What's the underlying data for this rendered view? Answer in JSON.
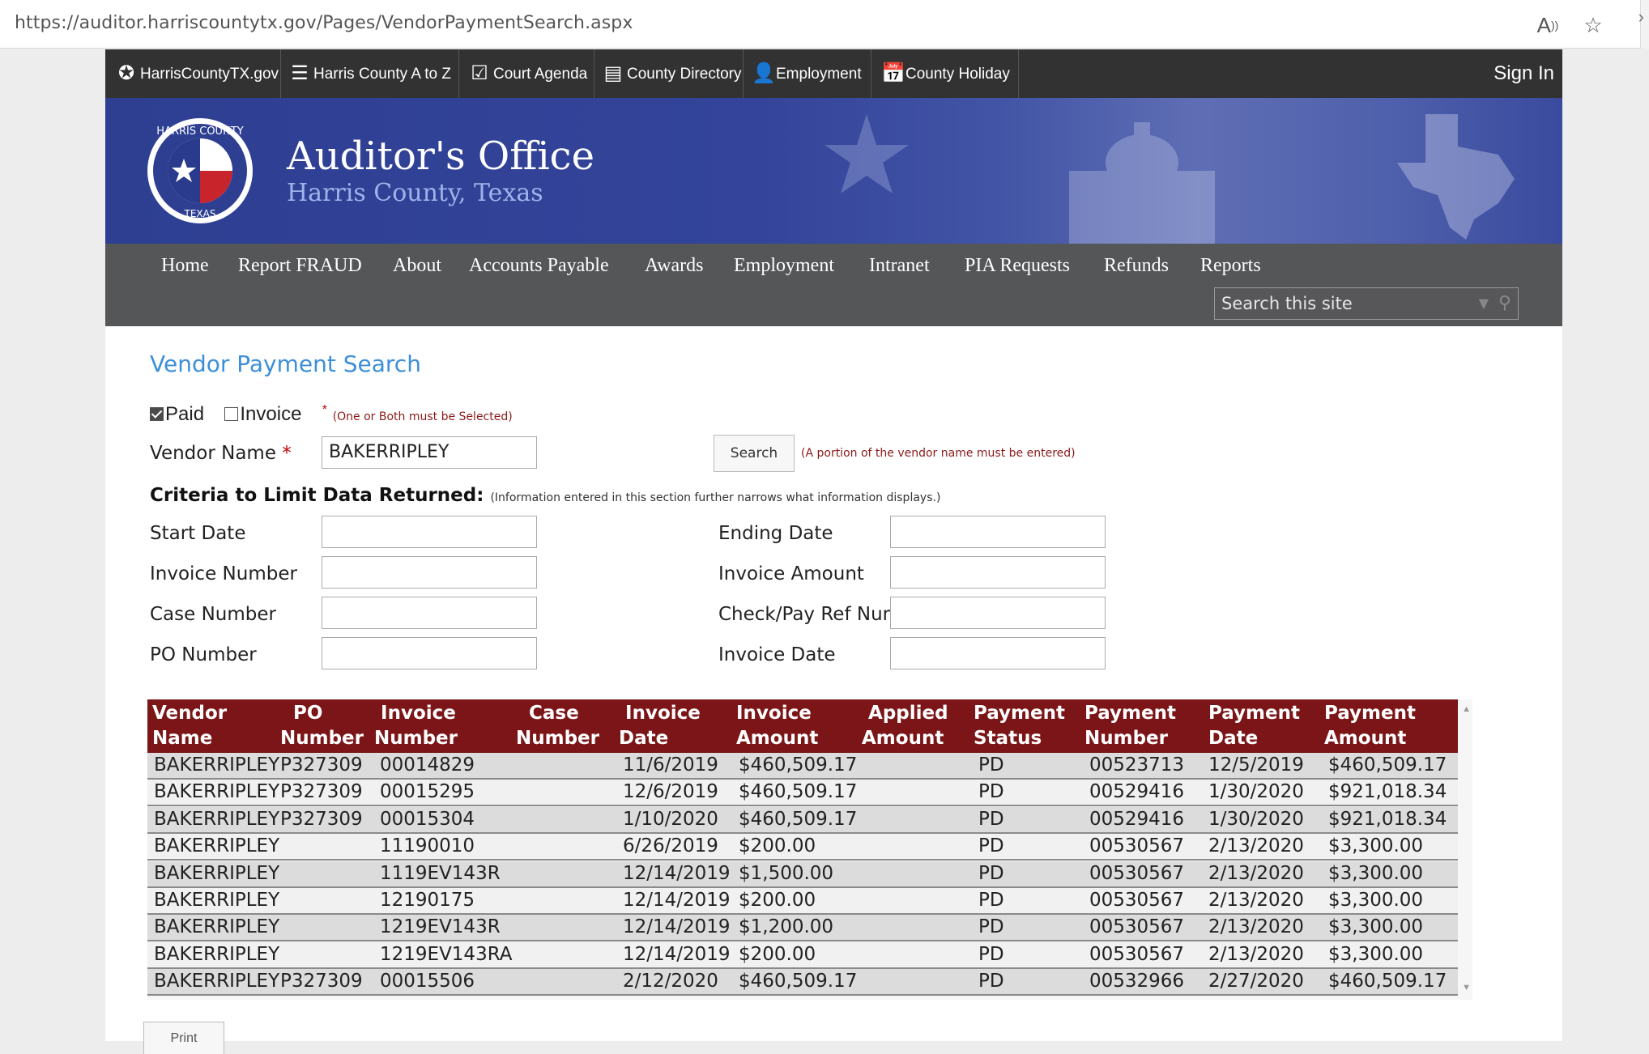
{
  "browser": {
    "url": "https://auditor.harriscountytx.gov/Pages/VendorPaymentSearch.aspx",
    "read_aloud_icon": "read-aloud-icon",
    "favorite_icon": "favorite-add-icon"
  },
  "topbar": {
    "items": [
      {
        "label": "HarrisCountyTX.gov",
        "icon": "star-circle-icon"
      },
      {
        "label": "Harris County A to Z",
        "icon": "list-icon"
      },
      {
        "label": "Court Agenda",
        "icon": "clipboard-check-icon"
      },
      {
        "label": "County Directory",
        "icon": "book-icon"
      },
      {
        "label": "Employment",
        "icon": "person-icon"
      },
      {
        "label": "County Holiday",
        "icon": "calendar-icon"
      }
    ],
    "sign_in": "Sign In"
  },
  "banner": {
    "title": "Auditor's Office",
    "subtitle": "Harris County, Texas",
    "seal_text_top": "HARRIS COUNTY",
    "seal_text_bottom": "TEXAS"
  },
  "nav": {
    "items": [
      "Home",
      "Report FRAUD",
      "About",
      "Accounts Payable",
      "Awards",
      "Employment",
      "Intranet",
      "PIA Requests",
      "Refunds",
      "Reports"
    ],
    "search_placeholder": "Search this site"
  },
  "form": {
    "title": "Vendor Payment Search",
    "paid_label": "Paid",
    "paid_checked": true,
    "invoice_label": "Invoice",
    "invoice_checked": false,
    "required_mark": "*",
    "checkbox_note": "(One or Both must be Selected)",
    "vendor_name_label": "Vendor Name",
    "vendor_name_value": "BAKERRIPLEY",
    "search_button": "Search",
    "search_note": "(A portion of the vendor name must be entered)",
    "criteria_heading": "Criteria to Limit Data Returned:",
    "criteria_note": "(Information entered in this section further narrows what information displays.)",
    "left_fields": [
      "Start Date",
      "Invoice Number",
      "Case Number",
      "PO Number"
    ],
    "right_fields": [
      "Ending Date",
      "Invoice Amount",
      "Check/Pay Ref Num",
      "Invoice Date"
    ],
    "print_button": "Print"
  },
  "table": {
    "headers": [
      [
        "Vendor",
        "Name"
      ],
      [
        "PO",
        "Number"
      ],
      [
        "Invoice",
        "Number"
      ],
      [
        "Case",
        "Number"
      ],
      [
        "Invoice",
        "Date"
      ],
      [
        "Invoice",
        "Amount"
      ],
      [
        "Applied",
        "Amount"
      ],
      [
        "Payment",
        "Status"
      ],
      [
        "Payment",
        "Number"
      ],
      [
        "Payment",
        "Date"
      ],
      [
        "Payment",
        "Amount"
      ]
    ],
    "rows": [
      [
        "BAKERRIPLEY",
        "P327309",
        "00014829",
        "",
        "11/6/2019",
        "$460,509.17",
        "",
        "PD",
        "00523713",
        "12/5/2019",
        "$460,509.17"
      ],
      [
        "BAKERRIPLEY",
        "P327309",
        "00015295",
        "",
        "12/6/2019",
        "$460,509.17",
        "",
        "PD",
        "00529416",
        "1/30/2020",
        "$921,018.34"
      ],
      [
        "BAKERRIPLEY",
        "P327309",
        "00015304",
        "",
        "1/10/2020",
        "$460,509.17",
        "",
        "PD",
        "00529416",
        "1/30/2020",
        "$921,018.34"
      ],
      [
        "BAKERRIPLEY",
        "",
        "11190010",
        "",
        "6/26/2019",
        "$200.00",
        "",
        "PD",
        "00530567",
        "2/13/2020",
        "$3,300.00"
      ],
      [
        "BAKERRIPLEY",
        "",
        "1119EV143R",
        "",
        "12/14/2019",
        "$1,500.00",
        "",
        "PD",
        "00530567",
        "2/13/2020",
        "$3,300.00"
      ],
      [
        "BAKERRIPLEY",
        "",
        "12190175",
        "",
        "12/14/2019",
        "$200.00",
        "",
        "PD",
        "00530567",
        "2/13/2020",
        "$3,300.00"
      ],
      [
        "BAKERRIPLEY",
        "",
        "1219EV143R",
        "",
        "12/14/2019",
        "$1,200.00",
        "",
        "PD",
        "00530567",
        "2/13/2020",
        "$3,300.00"
      ],
      [
        "BAKERRIPLEY",
        "",
        "1219EV143RA",
        "",
        "12/14/2019",
        "$200.00",
        "",
        "PD",
        "00530567",
        "2/13/2020",
        "$3,300.00"
      ],
      [
        "BAKERRIPLEY",
        "P327309",
        "00015506",
        "",
        "2/12/2020",
        "$460,509.17",
        "",
        "PD",
        "00532966",
        "2/27/2020",
        "$460,509.17"
      ]
    ]
  },
  "colors": {
    "header_maroon": "#7b1517",
    "banner_blue": "#33449a",
    "title_blue": "#3c8fd8",
    "nav_gray": "#555658",
    "topbar_dark": "#323232"
  }
}
